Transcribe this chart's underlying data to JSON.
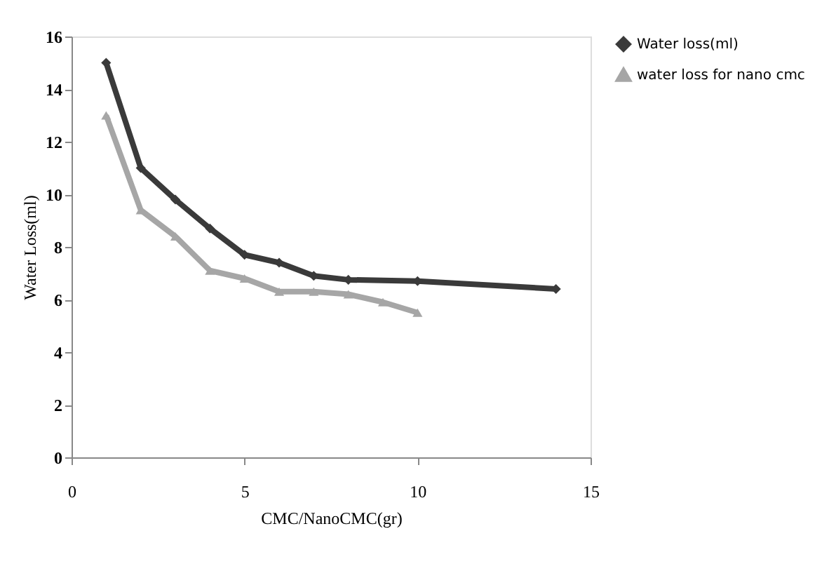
{
  "chart_data": {
    "type": "line",
    "xlabel": "CMC/NanoCMC(gr)",
    "ylabel": "Water Loss(ml)",
    "xlim": [
      0,
      15
    ],
    "xticks": [
      0,
      5,
      10,
      15
    ],
    "ylim": [
      0,
      16
    ],
    "yticks": [
      0,
      2,
      4,
      6,
      8,
      10,
      12,
      14,
      16
    ],
    "grid": false,
    "legend": "top right",
    "series": [
      {
        "name": "Water loss(ml)",
        "color": "#3a3a3a",
        "marker": "diamond",
        "x": [
          1,
          2,
          3,
          4,
          5,
          6,
          7,
          8,
          10,
          14
        ],
        "values": [
          15,
          11,
          9.8,
          8.7,
          7.7,
          7.4,
          6.9,
          6.75,
          6.7,
          6.4
        ]
      },
      {
        "name": "water loss for nano cmc",
        "color": "#a6a6a6",
        "marker": "triangle",
        "x": [
          1,
          2,
          3,
          4,
          5,
          6,
          7,
          8,
          9,
          10
        ],
        "values": [
          13,
          9.4,
          8.4,
          7.1,
          6.8,
          6.3,
          6.3,
          6.2,
          5.9,
          5.5
        ]
      }
    ]
  }
}
